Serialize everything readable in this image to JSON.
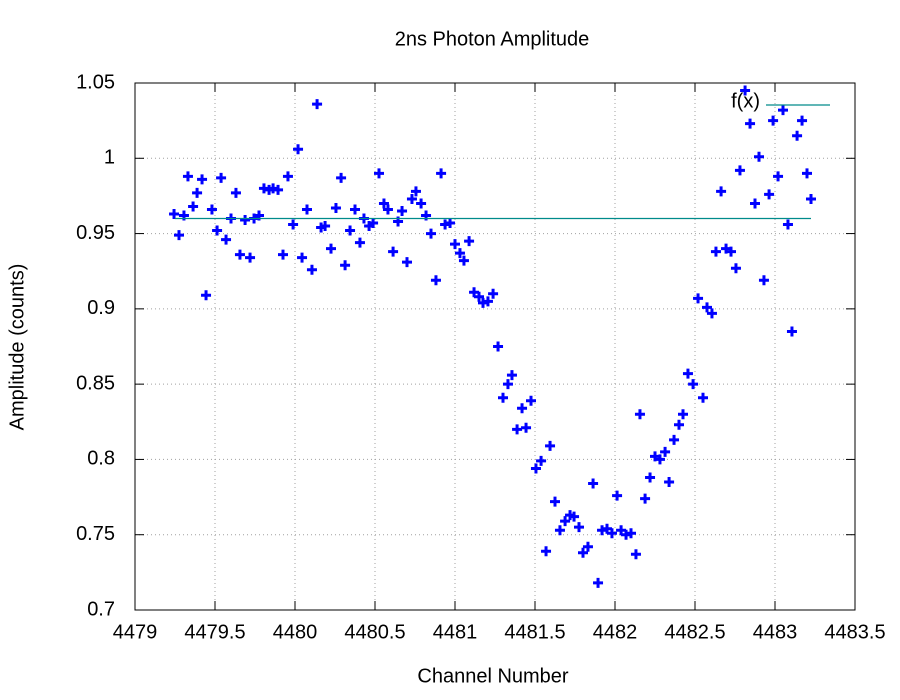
{
  "chart_data": {
    "type": "scatter",
    "title": "2ns Photon Amplitude",
    "x_label": "Channel Number",
    "y_label": "Amplitude (counts)",
    "xlim": [
      4479,
      4483.5
    ],
    "xticks": [
      4479,
      4479.5,
      4480,
      4480.5,
      4481,
      4481.5,
      4482,
      4482.5,
      4483,
      4483.5
    ],
    "ylim": [
      0.7,
      1.05
    ],
    "yticks": [
      0.7,
      0.75,
      0.8,
      0.85,
      0.9,
      0.95,
      1,
      1.05
    ],
    "grid": true,
    "legend": "top-right",
    "series": [
      {
        "color": "#0000ff",
        "marker": "plus",
        "x": [
          4479.244,
          4479.275,
          4479.306,
          4479.331,
          4479.363,
          4479.388,
          4479.419,
          4479.444,
          4479.481,
          4479.513,
          4479.538,
          4479.569,
          4479.6,
          4479.631,
          4479.656,
          4479.688,
          4479.719,
          4479.744,
          4479.775,
          4479.806,
          4479.838,
          4479.863,
          4479.894,
          4479.925,
          4479.956,
          4479.988,
          4480.019,
          4480.044,
          4480.075,
          4480.106,
          4480.138,
          4480.163,
          4480.188,
          4480.225,
          4480.256,
          4480.288,
          4480.313,
          4480.344,
          4480.375,
          4480.406,
          4480.431,
          4480.463,
          4480.488,
          4480.525,
          4480.556,
          4480.581,
          4480.613,
          4480.644,
          4480.669,
          4480.7,
          4480.731,
          4480.756,
          4480.788,
          4480.819,
          4480.85,
          4480.881,
          4480.913,
          4480.938,
          4480.969,
          4481.0,
          4481.031,
          4481.056,
          4481.088,
          4481.119,
          4481.15,
          4481.175,
          4481.206,
          4481.238,
          4481.269,
          4481.3,
          4481.331,
          4481.356,
          4481.388,
          4481.419,
          4481.444,
          4481.475,
          4481.506,
          4481.538,
          4481.569,
          4481.594,
          4481.625,
          4481.656,
          4481.688,
          4481.719,
          4481.744,
          4481.775,
          4481.8,
          4481.831,
          4481.863,
          4481.894,
          4481.919,
          4481.95,
          4481.981,
          4482.013,
          4482.038,
          4482.069,
          4482.1,
          4482.131,
          4482.156,
          4482.188,
          4482.219,
          4482.25,
          4482.281,
          4482.313,
          4482.338,
          4482.369,
          4482.4,
          4482.425,
          4482.456,
          4482.488,
          4482.519,
          4482.55,
          4482.575,
          4482.606,
          4482.631,
          4482.663,
          4482.694,
          4482.725,
          4482.756,
          4482.781,
          4482.813,
          4482.844,
          4482.875,
          4482.9,
          4482.931,
          4482.963,
          4482.988,
          4483.019,
          4483.05,
          4483.081,
          4483.106,
          4483.138,
          4483.169,
          4483.2,
          4483.225
        ],
        "values": [
          0.963,
          0.949,
          0.962,
          0.988,
          0.968,
          0.977,
          0.986,
          0.909,
          0.966,
          0.952,
          0.987,
          0.946,
          0.96,
          0.977,
          0.936,
          0.959,
          0.934,
          0.96,
          0.962,
          0.98,
          0.979,
          0.98,
          0.979,
          0.936,
          0.988,
          0.956,
          1.006,
          0.934,
          0.966,
          0.926,
          1.036,
          0.954,
          0.955,
          0.94,
          0.967,
          0.987,
          0.929,
          0.952,
          0.966,
          0.944,
          0.96,
          0.955,
          0.957,
          0.99,
          0.97,
          0.966,
          0.938,
          0.958,
          0.965,
          0.931,
          0.973,
          0.978,
          0.97,
          0.962,
          0.95,
          0.919,
          0.99,
          0.956,
          0.957,
          0.943,
          0.937,
          0.932,
          0.945,
          0.911,
          0.908,
          0.904,
          0.905,
          0.91,
          0.875,
          0.841,
          0.85,
          0.856,
          0.82,
          0.834,
          0.821,
          0.839,
          0.794,
          0.799,
          0.739,
          0.809,
          0.772,
          0.753,
          0.759,
          0.763,
          0.762,
          0.755,
          0.738,
          0.742,
          0.784,
          0.718,
          0.753,
          0.754,
          0.751,
          0.776,
          0.753,
          0.75,
          0.751,
          0.737,
          0.83,
          0.774,
          0.788,
          0.802,
          0.8,
          0.805,
          0.785,
          0.813,
          0.823,
          0.83,
          0.857,
          0.85,
          0.907,
          0.841,
          0.901,
          0.897,
          0.938,
          0.978,
          0.94,
          0.938,
          0.927,
          0.992,
          1.045,
          1.023,
          0.97,
          1.001,
          0.919,
          0.976,
          1.025,
          0.988,
          1.032,
          0.956,
          0.885,
          1.015,
          1.025,
          0.99,
          0.973
        ]
      },
      {
        "name": "f(x)",
        "color": "#008b8b",
        "marker": "line",
        "x": [
          4479.25,
          4483.225
        ],
        "values": [
          0.96,
          0.96
        ]
      }
    ]
  }
}
